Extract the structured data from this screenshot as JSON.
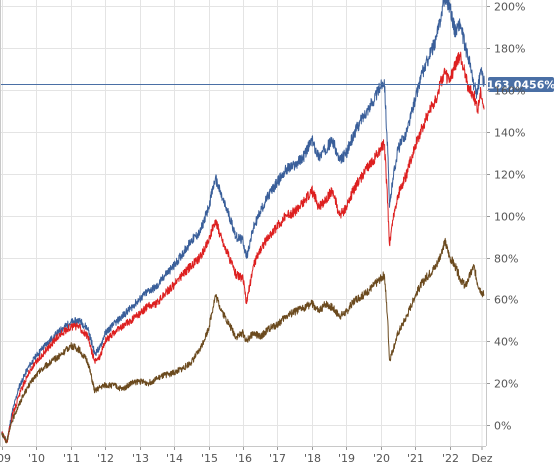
{
  "chart_data": {
    "type": "line",
    "x_ticks": [
      "'09",
      "'10",
      "'11",
      "'12",
      "'13",
      "'14",
      "'15",
      "'16",
      "'17",
      "'18",
      "'19",
      "'20",
      "'21",
      "'22",
      "Dez"
    ],
    "y_ticks": [
      "200%",
      "180%",
      "160%",
      "140%",
      "120%",
      "100%",
      "80%",
      "60%",
      "40%",
      "20%",
      "0%"
    ],
    "ylim": [
      -10,
      203
    ],
    "xlim": [
      2008.95,
      2023.05
    ],
    "grid": true,
    "legend": "none",
    "current_value_label": "163,0456%",
    "current_value": 163.05,
    "marker_color": "#4a6fa5",
    "series": [
      {
        "color": "#3a5f9a",
        "points": [
          [
            2009.0,
            -4
          ],
          [
            2009.15,
            -8
          ],
          [
            2009.3,
            6
          ],
          [
            2009.5,
            18
          ],
          [
            2009.75,
            27
          ],
          [
            2010.0,
            33
          ],
          [
            2010.25,
            38
          ],
          [
            2010.5,
            42
          ],
          [
            2010.75,
            46
          ],
          [
            2011.0,
            49
          ],
          [
            2011.25,
            50
          ],
          [
            2011.5,
            46
          ],
          [
            2011.7,
            34
          ],
          [
            2011.85,
            37
          ],
          [
            2012.0,
            44
          ],
          [
            2012.25,
            48
          ],
          [
            2012.5,
            52
          ],
          [
            2012.75,
            56
          ],
          [
            2013.0,
            60
          ],
          [
            2013.25,
            64
          ],
          [
            2013.5,
            66
          ],
          [
            2013.75,
            72
          ],
          [
            2014.0,
            76
          ],
          [
            2014.25,
            82
          ],
          [
            2014.5,
            88
          ],
          [
            2014.75,
            92
          ],
          [
            2015.0,
            104
          ],
          [
            2015.2,
            118
          ],
          [
            2015.4,
            108
          ],
          [
            2015.6,
            100
          ],
          [
            2015.8,
            90
          ],
          [
            2016.0,
            88
          ],
          [
            2016.1,
            80
          ],
          [
            2016.3,
            94
          ],
          [
            2016.5,
            102
          ],
          [
            2016.75,
            110
          ],
          [
            2017.0,
            116
          ],
          [
            2017.25,
            122
          ],
          [
            2017.5,
            124
          ],
          [
            2017.75,
            128
          ],
          [
            2018.0,
            136
          ],
          [
            2018.2,
            128
          ],
          [
            2018.4,
            132
          ],
          [
            2018.6,
            136
          ],
          [
            2018.8,
            126
          ],
          [
            2019.0,
            130
          ],
          [
            2019.25,
            140
          ],
          [
            2019.5,
            148
          ],
          [
            2019.75,
            154
          ],
          [
            2020.0,
            162
          ],
          [
            2020.1,
            165
          ],
          [
            2020.2,
            130
          ],
          [
            2020.25,
            104
          ],
          [
            2020.35,
            118
          ],
          [
            2020.5,
            132
          ],
          [
            2020.75,
            140
          ],
          [
            2021.0,
            156
          ],
          [
            2021.2,
            168
          ],
          [
            2021.4,
            176
          ],
          [
            2021.6,
            184
          ],
          [
            2021.75,
            196
          ],
          [
            2021.85,
            205
          ],
          [
            2022.0,
            200
          ],
          [
            2022.15,
            188
          ],
          [
            2022.3,
            192
          ],
          [
            2022.45,
            180
          ],
          [
            2022.55,
            175
          ],
          [
            2022.7,
            162
          ],
          [
            2022.8,
            158
          ],
          [
            2022.9,
            170
          ],
          [
            2023.0,
            163
          ]
        ]
      },
      {
        "color": "#dd2020",
        "points": [
          [
            2009.0,
            -4
          ],
          [
            2009.15,
            -8
          ],
          [
            2009.3,
            4
          ],
          [
            2009.5,
            14
          ],
          [
            2009.75,
            24
          ],
          [
            2010.0,
            30
          ],
          [
            2010.25,
            35
          ],
          [
            2010.5,
            40
          ],
          [
            2010.75,
            44
          ],
          [
            2011.0,
            47
          ],
          [
            2011.25,
            47
          ],
          [
            2011.5,
            42
          ],
          [
            2011.7,
            30
          ],
          [
            2011.85,
            33
          ],
          [
            2012.0,
            40
          ],
          [
            2012.25,
            44
          ],
          [
            2012.5,
            47
          ],
          [
            2012.75,
            50
          ],
          [
            2013.0,
            53
          ],
          [
            2013.25,
            57
          ],
          [
            2013.5,
            58
          ],
          [
            2013.75,
            63
          ],
          [
            2014.0,
            67
          ],
          [
            2014.25,
            72
          ],
          [
            2014.5,
            76
          ],
          [
            2014.75,
            80
          ],
          [
            2015.0,
            88
          ],
          [
            2015.2,
            98
          ],
          [
            2015.4,
            88
          ],
          [
            2015.6,
            80
          ],
          [
            2015.8,
            72
          ],
          [
            2016.0,
            70
          ],
          [
            2016.1,
            58
          ],
          [
            2016.3,
            76
          ],
          [
            2016.5,
            84
          ],
          [
            2016.75,
            90
          ],
          [
            2017.0,
            95
          ],
          [
            2017.25,
            100
          ],
          [
            2017.5,
            102
          ],
          [
            2017.75,
            106
          ],
          [
            2018.0,
            112
          ],
          [
            2018.2,
            104
          ],
          [
            2018.4,
            108
          ],
          [
            2018.6,
            112
          ],
          [
            2018.8,
            100
          ],
          [
            2019.0,
            104
          ],
          [
            2019.25,
            114
          ],
          [
            2019.5,
            120
          ],
          [
            2019.75,
            126
          ],
          [
            2020.0,
            132
          ],
          [
            2020.1,
            134
          ],
          [
            2020.2,
            106
          ],
          [
            2020.25,
            86
          ],
          [
            2020.35,
            98
          ],
          [
            2020.5,
            110
          ],
          [
            2020.75,
            120
          ],
          [
            2021.0,
            134
          ],
          [
            2021.2,
            142
          ],
          [
            2021.4,
            150
          ],
          [
            2021.6,
            156
          ],
          [
            2021.75,
            164
          ],
          [
            2021.85,
            168
          ],
          [
            2022.0,
            164
          ],
          [
            2022.15,
            172
          ],
          [
            2022.3,
            176
          ],
          [
            2022.45,
            168
          ],
          [
            2022.55,
            160
          ],
          [
            2022.7,
            158
          ],
          [
            2022.8,
            150
          ],
          [
            2022.9,
            160
          ],
          [
            2023.0,
            151
          ]
        ]
      },
      {
        "color": "#6b4a1e",
        "points": [
          [
            2009.0,
            -4
          ],
          [
            2009.15,
            -8
          ],
          [
            2009.3,
            2
          ],
          [
            2009.5,
            10
          ],
          [
            2009.75,
            18
          ],
          [
            2010.0,
            24
          ],
          [
            2010.25,
            28
          ],
          [
            2010.5,
            31
          ],
          [
            2010.75,
            34
          ],
          [
            2011.0,
            38
          ],
          [
            2011.25,
            36
          ],
          [
            2011.5,
            30
          ],
          [
            2011.7,
            16
          ],
          [
            2011.85,
            18
          ],
          [
            2012.0,
            19
          ],
          [
            2012.25,
            19
          ],
          [
            2012.5,
            17
          ],
          [
            2012.75,
            20
          ],
          [
            2013.0,
            21
          ],
          [
            2013.25,
            20
          ],
          [
            2013.5,
            22
          ],
          [
            2013.75,
            24
          ],
          [
            2014.0,
            25
          ],
          [
            2014.25,
            27
          ],
          [
            2014.5,
            30
          ],
          [
            2014.75,
            36
          ],
          [
            2015.0,
            46
          ],
          [
            2015.2,
            62
          ],
          [
            2015.4,
            54
          ],
          [
            2015.6,
            48
          ],
          [
            2015.8,
            42
          ],
          [
            2016.0,
            44
          ],
          [
            2016.1,
            40
          ],
          [
            2016.3,
            44
          ],
          [
            2016.5,
            42
          ],
          [
            2016.75,
            46
          ],
          [
            2017.0,
            48
          ],
          [
            2017.25,
            52
          ],
          [
            2017.5,
            54
          ],
          [
            2017.75,
            56
          ],
          [
            2018.0,
            58
          ],
          [
            2018.2,
            54
          ],
          [
            2018.4,
            58
          ],
          [
            2018.6,
            56
          ],
          [
            2018.8,
            52
          ],
          [
            2019.0,
            54
          ],
          [
            2019.25,
            60
          ],
          [
            2019.5,
            62
          ],
          [
            2019.75,
            66
          ],
          [
            2020.0,
            70
          ],
          [
            2020.1,
            72
          ],
          [
            2020.2,
            50
          ],
          [
            2020.25,
            31
          ],
          [
            2020.35,
            36
          ],
          [
            2020.5,
            44
          ],
          [
            2020.75,
            52
          ],
          [
            2021.0,
            62
          ],
          [
            2021.2,
            68
          ],
          [
            2021.4,
            72
          ],
          [
            2021.6,
            76
          ],
          [
            2021.75,
            82
          ],
          [
            2021.85,
            88
          ],
          [
            2022.0,
            80
          ],
          [
            2022.15,
            76
          ],
          [
            2022.3,
            70
          ],
          [
            2022.45,
            66
          ],
          [
            2022.55,
            70
          ],
          [
            2022.7,
            76
          ],
          [
            2022.8,
            68
          ],
          [
            2022.9,
            64
          ],
          [
            2023.0,
            62
          ]
        ]
      }
    ]
  }
}
